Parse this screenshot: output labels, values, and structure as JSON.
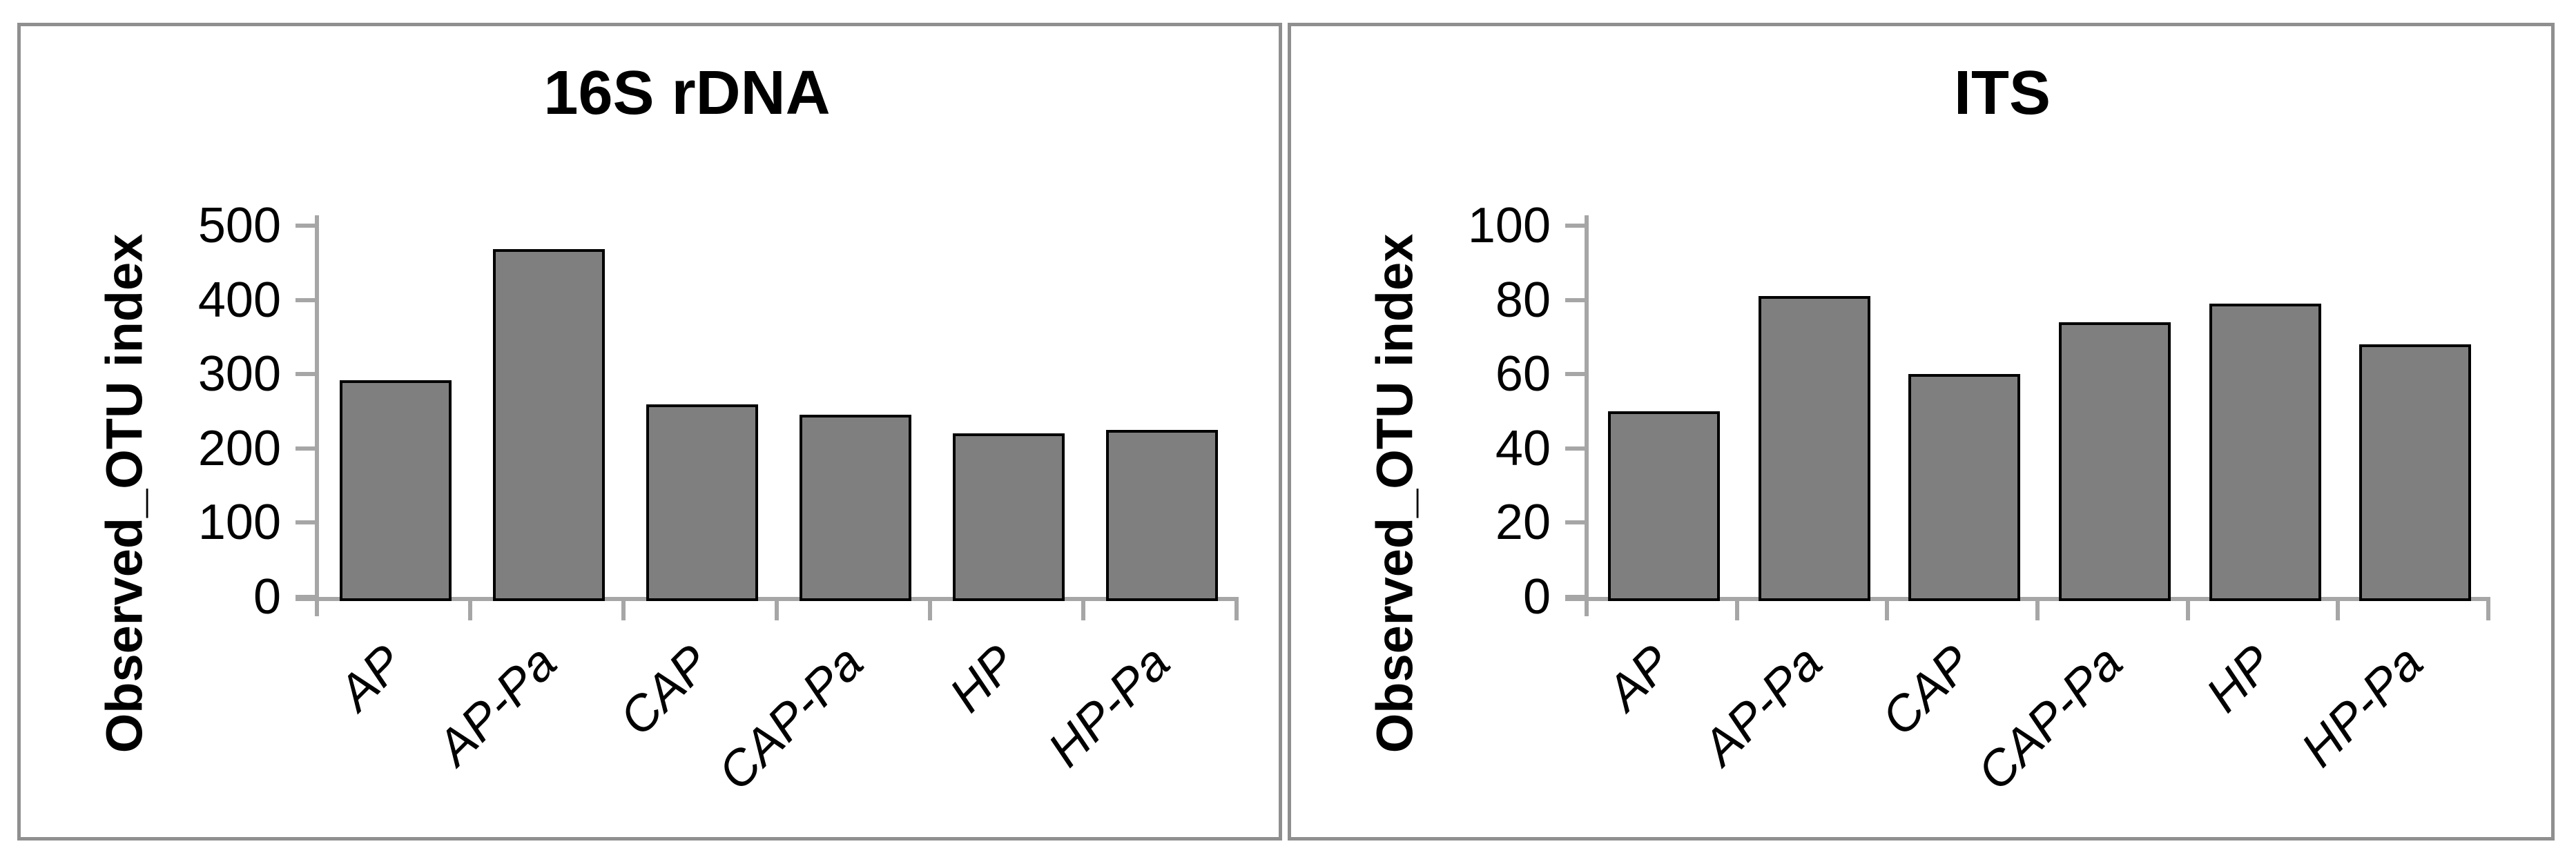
{
  "page": {
    "background_color": "#FFFFFF",
    "panel_border_color": "#8F8F8F"
  },
  "chart_data": [
    {
      "type": "bar",
      "title": "16S rDNA",
      "xlabel": "",
      "ylabel": "Observed_OTU index",
      "categories": [
        "AP",
        "AP-Pa",
        "CAP",
        "CAP-Pa",
        "HP",
        "HP-Pa"
      ],
      "values": [
        292,
        468,
        259,
        245,
        220,
        225
      ],
      "yticks": [
        0,
        100,
        200,
        300,
        400,
        500
      ],
      "ylim": [
        0,
        500
      ],
      "grid": false,
      "legend": false,
      "bar_color": "#7F7F7F",
      "bar_border_color": "#000000",
      "axis_color": "#A6A6A6",
      "text_color": "#000000"
    },
    {
      "type": "bar",
      "title": "ITS",
      "xlabel": "",
      "ylabel": "Observed_OTU index",
      "categories": [
        "AP",
        "AP-Pa",
        "CAP",
        "CAP-Pa",
        "HP",
        "HP-Pa"
      ],
      "values": [
        50,
        81,
        60,
        74,
        79,
        68
      ],
      "yticks": [
        0,
        20,
        40,
        60,
        80,
        100
      ],
      "ylim": [
        0,
        100
      ],
      "grid": false,
      "legend": false,
      "bar_color": "#7F7F7F",
      "bar_border_color": "#000000",
      "axis_color": "#A6A6A6",
      "text_color": "#000000"
    }
  ]
}
